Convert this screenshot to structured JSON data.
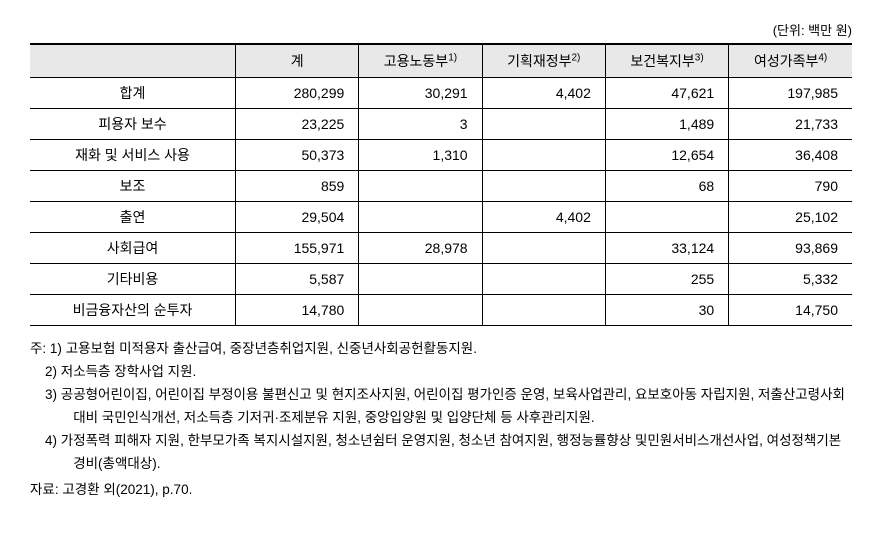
{
  "unit_text": "(단위: 백만 원)",
  "table": {
    "background_header": "#e8e8e8",
    "border_color": "#000000",
    "columns": [
      {
        "label": "",
        "width": "25%",
        "align": "center"
      },
      {
        "label": "계",
        "width": "15%",
        "align": "right"
      },
      {
        "label": "고용노동부",
        "sup": "1)",
        "width": "15%",
        "align": "right"
      },
      {
        "label": "기획재정부",
        "sup": "2)",
        "width": "15%",
        "align": "right"
      },
      {
        "label": "보건복지부",
        "sup": "3)",
        "width": "15%",
        "align": "right"
      },
      {
        "label": "여성가족부",
        "sup": "4)",
        "width": "15%",
        "align": "right"
      }
    ],
    "rows": [
      {
        "label": "합계",
        "values": [
          "280,299",
          "30,291",
          "4,402",
          "47,621",
          "197,985"
        ]
      },
      {
        "label": "피용자 보수",
        "values": [
          "23,225",
          "3",
          "",
          "1,489",
          "21,733"
        ]
      },
      {
        "label": "재화 및 서비스 사용",
        "values": [
          "50,373",
          "1,310",
          "",
          "12,654",
          "36,408"
        ]
      },
      {
        "label": "보조",
        "values": [
          "859",
          "",
          "",
          "68",
          "790"
        ]
      },
      {
        "label": "출연",
        "values": [
          "29,504",
          "",
          "4,402",
          "",
          "25,102"
        ]
      },
      {
        "label": "사회급여",
        "values": [
          "155,971",
          "28,978",
          "",
          "33,124",
          "93,869"
        ]
      },
      {
        "label": "기타비용",
        "values": [
          "5,587",
          "",
          "",
          "255",
          "5,332"
        ]
      },
      {
        "label": "비금융자산의 순투자",
        "values": [
          "14,780",
          "",
          "",
          "30",
          "14,750"
        ]
      }
    ]
  },
  "notes": {
    "prefix": "주: ",
    "items": [
      {
        "num": "1)",
        "text": "고용보험 미적용자 출산급여, 중장년층취업지원, 신중년사회공헌활동지원."
      },
      {
        "num": "2)",
        "text": "저소득층 장학사업 지원."
      },
      {
        "num": "3)",
        "text": "공공형어린이집, 어린이집 부정이용 불편신고 및 현지조사지원, 어린이집 평가인증 운영, 보육사업관리, 요보호아동 자립지원, 저출산고령사회 대비 국민인식개선, 저소득층 기저귀·조제분유 지원, 중앙입양원 및 입양단체 등 사후관리지원."
      },
      {
        "num": "4)",
        "text": "가정폭력 피해자 지원, 한부모가족 복지시설지원, 청소년쉼터 운영지원, 청소년 참여지원, 행정능률향상 및민원서비스개선사업, 여성정책기본경비(총액대상)."
      }
    ]
  },
  "source": {
    "prefix": "자료: ",
    "text": "고경환 외(2021), p.70."
  }
}
